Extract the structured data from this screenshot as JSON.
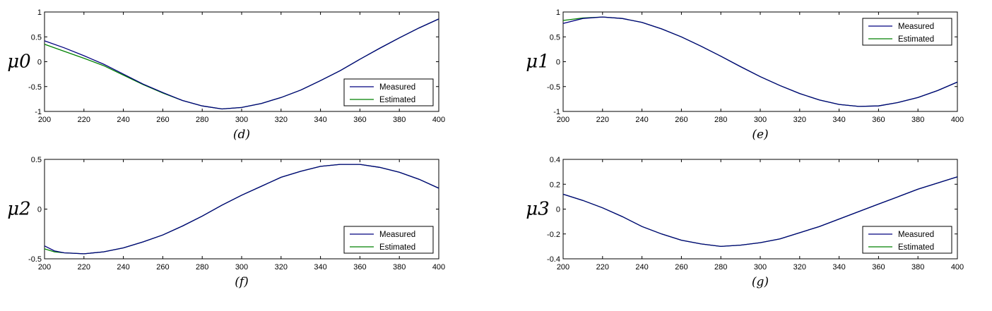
{
  "chart_data": [
    {
      "type": "line",
      "panel_label": "(d)",
      "ylabel": "μ0",
      "xlim": [
        200,
        400
      ],
      "ylim": [
        -1,
        1
      ],
      "xticks": [
        "200",
        "220",
        "240",
        "260",
        "280",
        "300",
        "320",
        "340",
        "360",
        "380",
        "400"
      ],
      "yticks": [
        "-1",
        "-0.5",
        "0",
        "0.5",
        "1"
      ],
      "legend_position": "lower-right",
      "series": [
        {
          "name": "Measured",
          "color": "#00007f",
          "x": [
            200,
            210,
            220,
            230,
            240,
            250,
            260,
            270,
            280,
            290,
            300,
            310,
            320,
            330,
            340,
            350,
            360,
            370,
            380,
            390,
            400
          ],
          "y": [
            0.42,
            0.28,
            0.12,
            -0.05,
            -0.25,
            -0.45,
            -0.62,
            -0.78,
            -0.89,
            -0.95,
            -0.92,
            -0.84,
            -0.72,
            -0.57,
            -0.38,
            -0.18,
            0.05,
            0.27,
            0.48,
            0.68,
            0.86
          ]
        },
        {
          "name": "Estimated",
          "color": "#008000",
          "x": [
            200,
            210,
            220,
            230,
            240,
            250,
            260,
            270,
            280,
            290,
            300,
            310,
            320,
            330,
            340,
            350,
            360,
            370,
            380,
            390,
            400
          ],
          "y": [
            0.35,
            0.21,
            0.07,
            -0.08,
            -0.27,
            -0.46,
            -0.63,
            -0.78,
            -0.89,
            -0.95,
            -0.92,
            -0.84,
            -0.72,
            -0.57,
            -0.38,
            -0.18,
            0.05,
            0.27,
            0.48,
            0.68,
            0.86
          ]
        }
      ]
    },
    {
      "type": "line",
      "panel_label": "(e)",
      "ylabel": "μ1",
      "xlim": [
        200,
        400
      ],
      "ylim": [
        -1,
        1
      ],
      "xticks": [
        "200",
        "220",
        "240",
        "260",
        "280",
        "300",
        "320",
        "340",
        "360",
        "380",
        "400"
      ],
      "yticks": [
        "-1",
        "-0.5",
        "0",
        "0.5",
        "1"
      ],
      "legend_position": "top-right",
      "series": [
        {
          "name": "Measured",
          "color": "#00007f",
          "x": [
            200,
            210,
            220,
            230,
            240,
            250,
            260,
            270,
            280,
            290,
            300,
            310,
            320,
            330,
            340,
            350,
            360,
            370,
            380,
            390,
            400
          ],
          "y": [
            0.77,
            0.87,
            0.9,
            0.87,
            0.79,
            0.66,
            0.5,
            0.31,
            0.11,
            -0.1,
            -0.3,
            -0.48,
            -0.64,
            -0.77,
            -0.86,
            -0.9,
            -0.89,
            -0.82,
            -0.72,
            -0.58,
            -0.41
          ]
        },
        {
          "name": "Estimated",
          "color": "#008000",
          "x": [
            200,
            210,
            220,
            230,
            240,
            250,
            260,
            270,
            280,
            290,
            300,
            310,
            320,
            330,
            340,
            350,
            360,
            370,
            380,
            390,
            400
          ],
          "y": [
            0.83,
            0.88,
            0.9,
            0.87,
            0.79,
            0.66,
            0.5,
            0.31,
            0.11,
            -0.1,
            -0.3,
            -0.48,
            -0.64,
            -0.77,
            -0.86,
            -0.9,
            -0.89,
            -0.82,
            -0.72,
            -0.58,
            -0.41
          ]
        }
      ]
    },
    {
      "type": "line",
      "panel_label": "(f)",
      "ylabel": "μ2",
      "xlim": [
        200,
        400
      ],
      "ylim": [
        -0.5,
        0.5
      ],
      "xticks": [
        "200",
        "220",
        "240",
        "260",
        "280",
        "300",
        "320",
        "340",
        "360",
        "380",
        "400"
      ],
      "yticks": [
        "-0.5",
        "0",
        "0.5"
      ],
      "legend_position": "lower-right",
      "series": [
        {
          "name": "Measured",
          "color": "#00007f",
          "x": [
            200,
            205,
            210,
            220,
            230,
            240,
            250,
            260,
            270,
            280,
            290,
            300,
            310,
            320,
            330,
            340,
            350,
            360,
            370,
            380,
            390,
            400
          ],
          "y": [
            -0.37,
            -0.42,
            -0.44,
            -0.45,
            -0.43,
            -0.39,
            -0.33,
            -0.26,
            -0.17,
            -0.07,
            0.04,
            0.14,
            0.23,
            0.32,
            0.38,
            0.43,
            0.45,
            0.45,
            0.42,
            0.37,
            0.3,
            0.21
          ]
        },
        {
          "name": "Estimated",
          "color": "#008000",
          "x": [
            200,
            205,
            210,
            220,
            230,
            240,
            250,
            260,
            270,
            280,
            290,
            300,
            310,
            320,
            330,
            340,
            350,
            360,
            370,
            380,
            390,
            400
          ],
          "y": [
            -0.4,
            -0.43,
            -0.44,
            -0.45,
            -0.43,
            -0.39,
            -0.33,
            -0.26,
            -0.17,
            -0.07,
            0.04,
            0.14,
            0.23,
            0.32,
            0.38,
            0.43,
            0.45,
            0.45,
            0.42,
            0.37,
            0.3,
            0.21
          ]
        }
      ]
    },
    {
      "type": "line",
      "panel_label": "(g)",
      "ylabel": "μ3",
      "xlim": [
        200,
        400
      ],
      "ylim": [
        -0.4,
        0.4
      ],
      "xticks": [
        "200",
        "220",
        "240",
        "260",
        "280",
        "300",
        "320",
        "340",
        "360",
        "380",
        "400"
      ],
      "yticks": [
        "-0.4",
        "-0.2",
        "0",
        "0.2",
        "0.4"
      ],
      "legend_position": "lower-right",
      "series": [
        {
          "name": "Measured",
          "color": "#00007f",
          "x": [
            200,
            210,
            220,
            230,
            240,
            250,
            260,
            270,
            280,
            290,
            300,
            310,
            320,
            330,
            340,
            350,
            360,
            370,
            380,
            390,
            400
          ],
          "y": [
            0.12,
            0.07,
            0.01,
            -0.06,
            -0.14,
            -0.2,
            -0.25,
            -0.28,
            -0.3,
            -0.29,
            -0.27,
            -0.24,
            -0.19,
            -0.14,
            -0.08,
            -0.02,
            0.04,
            0.1,
            0.16,
            0.21,
            0.26
          ]
        },
        {
          "name": "Estimated",
          "color": "#008000",
          "x": [
            200,
            210,
            220,
            230,
            240,
            250,
            260,
            270,
            280,
            290,
            300,
            310,
            320,
            330,
            340,
            350,
            360,
            370,
            380,
            390,
            400
          ],
          "y": [
            0.12,
            0.07,
            0.01,
            -0.06,
            -0.14,
            -0.2,
            -0.25,
            -0.28,
            -0.3,
            -0.29,
            -0.27,
            -0.24,
            -0.19,
            -0.14,
            -0.08,
            -0.02,
            0.04,
            0.1,
            0.16,
            0.21,
            0.26
          ]
        }
      ]
    }
  ]
}
